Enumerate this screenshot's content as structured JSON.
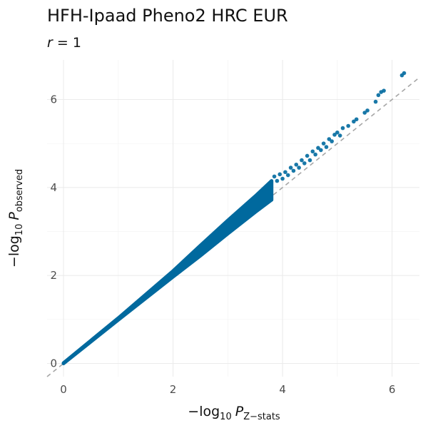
{
  "chart_data": {
    "type": "scatter",
    "title": "HFH-Ipaad Pheno2 HRC EUR",
    "subtitle": {
      "var": "r",
      "op": " = ",
      "value": "1"
    },
    "xlabel": {
      "prefix": "−log",
      "base": "10",
      "p": "P",
      "sub": "Z−stats"
    },
    "ylabel": {
      "prefix": "−log",
      "base": "10",
      "p": "P",
      "sub": "observed"
    },
    "xlim": [
      -0.3,
      6.5
    ],
    "ylim": [
      -0.3,
      6.9
    ],
    "x_ticks": [
      0,
      2,
      4,
      6
    ],
    "y_ticks": [
      0,
      2,
      4,
      6
    ],
    "x_tick_labels": [
      "0",
      "2",
      "4",
      "6"
    ],
    "y_tick_labels": [
      "0",
      "2",
      "4",
      "6"
    ],
    "grid": true,
    "reference_line": {
      "style": "dashed",
      "slope": 1,
      "intercept": 0,
      "color": "#a6a6a6"
    },
    "point_color": "#00699e",
    "main_band": [
      {
        "x": 0.0,
        "y_low": 0.0,
        "y_high": 0.01
      },
      {
        "x": 1.0,
        "y_low": 0.99,
        "y_high": 1.03
      },
      {
        "x": 2.0,
        "y_low": 1.97,
        "y_high": 2.1
      },
      {
        "x": 2.5,
        "y_low": 2.45,
        "y_high": 2.68
      },
      {
        "x": 3.0,
        "y_low": 2.95,
        "y_high": 3.25
      },
      {
        "x": 3.5,
        "y_low": 3.44,
        "y_high": 3.8
      },
      {
        "x": 3.8,
        "y_low": 3.72,
        "y_high": 4.15
      }
    ],
    "points": [
      {
        "x": 3.85,
        "y": 4.25
      },
      {
        "x": 3.9,
        "y": 4.15
      },
      {
        "x": 3.95,
        "y": 4.3
      },
      {
        "x": 4.0,
        "y": 4.2
      },
      {
        "x": 4.05,
        "y": 4.35
      },
      {
        "x": 4.1,
        "y": 4.28
      },
      {
        "x": 4.15,
        "y": 4.45
      },
      {
        "x": 4.2,
        "y": 4.38
      },
      {
        "x": 4.25,
        "y": 4.52
      },
      {
        "x": 4.3,
        "y": 4.45
      },
      {
        "x": 4.35,
        "y": 4.62
      },
      {
        "x": 4.4,
        "y": 4.55
      },
      {
        "x": 4.45,
        "y": 4.72
      },
      {
        "x": 4.5,
        "y": 4.62
      },
      {
        "x": 4.55,
        "y": 4.82
      },
      {
        "x": 4.6,
        "y": 4.75
      },
      {
        "x": 4.65,
        "y": 4.9
      },
      {
        "x": 4.7,
        "y": 4.85
      },
      {
        "x": 4.75,
        "y": 5.0
      },
      {
        "x": 4.8,
        "y": 4.92
      },
      {
        "x": 4.85,
        "y": 5.1
      },
      {
        "x": 4.9,
        "y": 5.05
      },
      {
        "x": 4.95,
        "y": 5.2
      },
      {
        "x": 5.0,
        "y": 5.25
      },
      {
        "x": 5.05,
        "y": 5.18
      },
      {
        "x": 5.1,
        "y": 5.35
      },
      {
        "x": 5.2,
        "y": 5.4
      },
      {
        "x": 5.3,
        "y": 5.5
      },
      {
        "x": 5.35,
        "y": 5.55
      },
      {
        "x": 5.5,
        "y": 5.7
      },
      {
        "x": 5.55,
        "y": 5.75
      },
      {
        "x": 5.7,
        "y": 5.95
      },
      {
        "x": 5.75,
        "y": 6.1
      },
      {
        "x": 5.8,
        "y": 6.17
      },
      {
        "x": 5.85,
        "y": 6.2
      },
      {
        "x": 6.18,
        "y": 6.55
      },
      {
        "x": 6.22,
        "y": 6.6
      }
    ]
  }
}
